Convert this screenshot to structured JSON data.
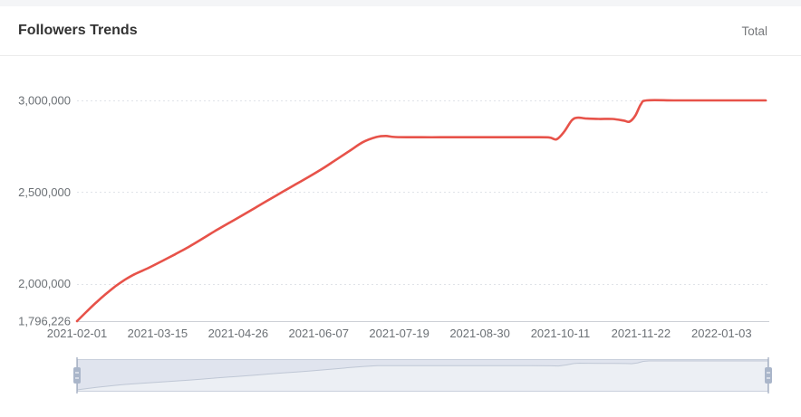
{
  "header": {
    "title": "Followers Trends",
    "legend_total": "Total"
  },
  "colors": {
    "line": "#e75249",
    "grid": "#e0e3e8",
    "axis_line": "#cdd0d6",
    "axis_label": "#6b7075",
    "slider_track": "#eceff4",
    "slider_shade": "#e0e4ee",
    "slider_border": "#c9d0dc",
    "slider_curve": "#bfc7d5",
    "slider_handle": "#aab6ca",
    "slider_stem": "#98a5ba",
    "handle_grip_line": "#e9edf3"
  },
  "chart_data": {
    "type": "line",
    "title": "Followers Trends",
    "series": [
      {
        "name": "Total"
      }
    ],
    "legend_position": "top-right",
    "grid": "dotted-horizontal",
    "x_range": [
      "2021-02-01",
      "2022-01-26"
    ],
    "y_range": [
      1796226,
      3000000
    ],
    "y_ticks": [
      {
        "label": "3,000,000",
        "value": 3000000
      },
      {
        "label": "2,500,000",
        "value": 2500000
      },
      {
        "label": "2,000,000",
        "value": 2000000
      },
      {
        "label": "1,796,226",
        "value": 1796226
      }
    ],
    "x_tick_labels": [
      "2021-02-01",
      "2021-03-15",
      "2021-04-26",
      "2021-06-07",
      "2021-07-19",
      "2021-08-30",
      "2021-10-11",
      "2021-11-22",
      "2022-01-03"
    ],
    "points": [
      [
        "2021-02-01",
        1796226
      ],
      [
        "2021-02-06",
        1848000
      ],
      [
        "2021-02-11",
        1898000
      ],
      [
        "2021-02-16",
        1944000
      ],
      [
        "2021-02-21",
        1986000
      ],
      [
        "2021-02-26",
        2022000
      ],
      [
        "2021-03-03",
        2052000
      ],
      [
        "2021-03-10",
        2085000
      ],
      [
        "2021-03-17",
        2122000
      ],
      [
        "2021-03-24",
        2160000
      ],
      [
        "2021-03-31",
        2200000
      ],
      [
        "2021-04-07",
        2243000
      ],
      [
        "2021-04-14",
        2288000
      ],
      [
        "2021-04-21",
        2330000
      ],
      [
        "2021-04-28",
        2372000
      ],
      [
        "2021-05-05",
        2415000
      ],
      [
        "2021-05-12",
        2458000
      ],
      [
        "2021-05-19",
        2500000
      ],
      [
        "2021-05-26",
        2542000
      ],
      [
        "2021-06-02",
        2584000
      ],
      [
        "2021-06-09",
        2628000
      ],
      [
        "2021-06-16",
        2676000
      ],
      [
        "2021-06-23",
        2724000
      ],
      [
        "2021-06-30",
        2772000
      ],
      [
        "2021-07-07",
        2800000
      ],
      [
        "2021-07-12",
        2806000
      ],
      [
        "2021-07-17",
        2800000
      ],
      [
        "2021-07-31",
        2799000
      ],
      [
        "2021-08-14",
        2799000
      ],
      [
        "2021-08-28",
        2799000
      ],
      [
        "2021-09-11",
        2799000
      ],
      [
        "2021-09-25",
        2799000
      ],
      [
        "2021-10-05",
        2798000
      ],
      [
        "2021-10-09",
        2788000
      ],
      [
        "2021-10-13",
        2830000
      ],
      [
        "2021-10-17",
        2892000
      ],
      [
        "2021-10-20",
        2906000
      ],
      [
        "2021-10-24",
        2902000
      ],
      [
        "2021-10-31",
        2899000
      ],
      [
        "2021-11-07",
        2899000
      ],
      [
        "2021-11-13",
        2890000
      ],
      [
        "2021-11-16",
        2884000
      ],
      [
        "2021-11-19",
        2916000
      ],
      [
        "2021-11-22",
        2980000
      ],
      [
        "2021-11-25",
        3000000
      ],
      [
        "2021-12-09",
        3000000
      ],
      [
        "2021-12-23",
        3000000
      ],
      [
        "2022-01-06",
        3000000
      ],
      [
        "2022-01-26",
        3000000
      ]
    ]
  }
}
